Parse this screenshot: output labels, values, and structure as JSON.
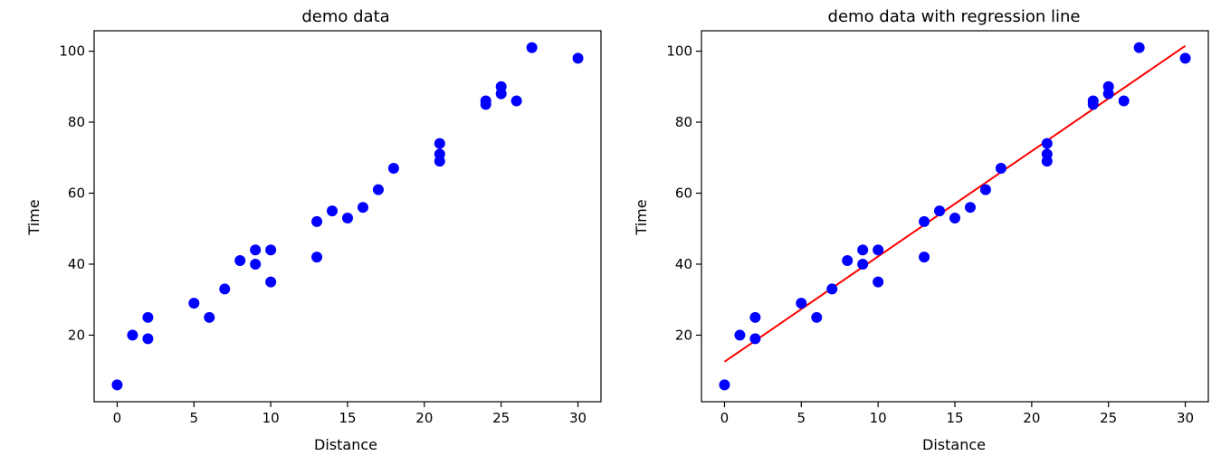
{
  "chart_data": [
    {
      "type": "scatter",
      "title": "demo data",
      "xlabel": "Distance",
      "ylabel": "Time",
      "xlim": [
        -1.5,
        31.5
      ],
      "ylim": [
        1.25,
        105.75
      ],
      "xticks": [
        0,
        5,
        10,
        15,
        20,
        25,
        30
      ],
      "yticks": [
        20,
        40,
        60,
        80,
        100
      ],
      "grid": false,
      "point_color": "#0000ff",
      "series": [
        {
          "x": [
            0,
            1,
            2,
            2,
            5,
            6,
            7,
            8,
            9,
            9,
            10,
            10,
            13,
            13,
            14,
            15,
            16,
            17,
            18,
            21,
            21,
            21,
            24,
            24,
            25,
            25,
            26,
            27,
            30
          ],
          "y": [
            6,
            20,
            19,
            25,
            29,
            25,
            33,
            41,
            40,
            44,
            44,
            35,
            52,
            42,
            55,
            53,
            56,
            61,
            67,
            74,
            71,
            69,
            85,
            86,
            88,
            90,
            86,
            101,
            98
          ]
        }
      ]
    },
    {
      "type": "scatter",
      "title": "demo data with regression line",
      "xlabel": "Distance",
      "ylabel": "Time",
      "xlim": [
        -1.5,
        31.5
      ],
      "ylim": [
        1.25,
        105.75
      ],
      "xticks": [
        0,
        5,
        10,
        15,
        20,
        25,
        30
      ],
      "yticks": [
        20,
        40,
        60,
        80,
        100
      ],
      "grid": false,
      "point_color": "#0000ff",
      "line_color": "#ff0000",
      "series": [
        {
          "x": [
            0,
            1,
            2,
            2,
            5,
            6,
            7,
            8,
            9,
            9,
            10,
            10,
            13,
            13,
            14,
            15,
            16,
            17,
            18,
            21,
            21,
            21,
            24,
            24,
            25,
            25,
            26,
            27,
            30
          ],
          "y": [
            6,
            20,
            19,
            25,
            29,
            25,
            33,
            41,
            40,
            44,
            44,
            35,
            52,
            42,
            55,
            53,
            56,
            61,
            67,
            74,
            71,
            69,
            85,
            86,
            88,
            90,
            86,
            101,
            98
          ]
        }
      ],
      "regression_line": {
        "x": [
          0,
          30
        ],
        "y": [
          12.5,
          101.5
        ]
      }
    }
  ]
}
